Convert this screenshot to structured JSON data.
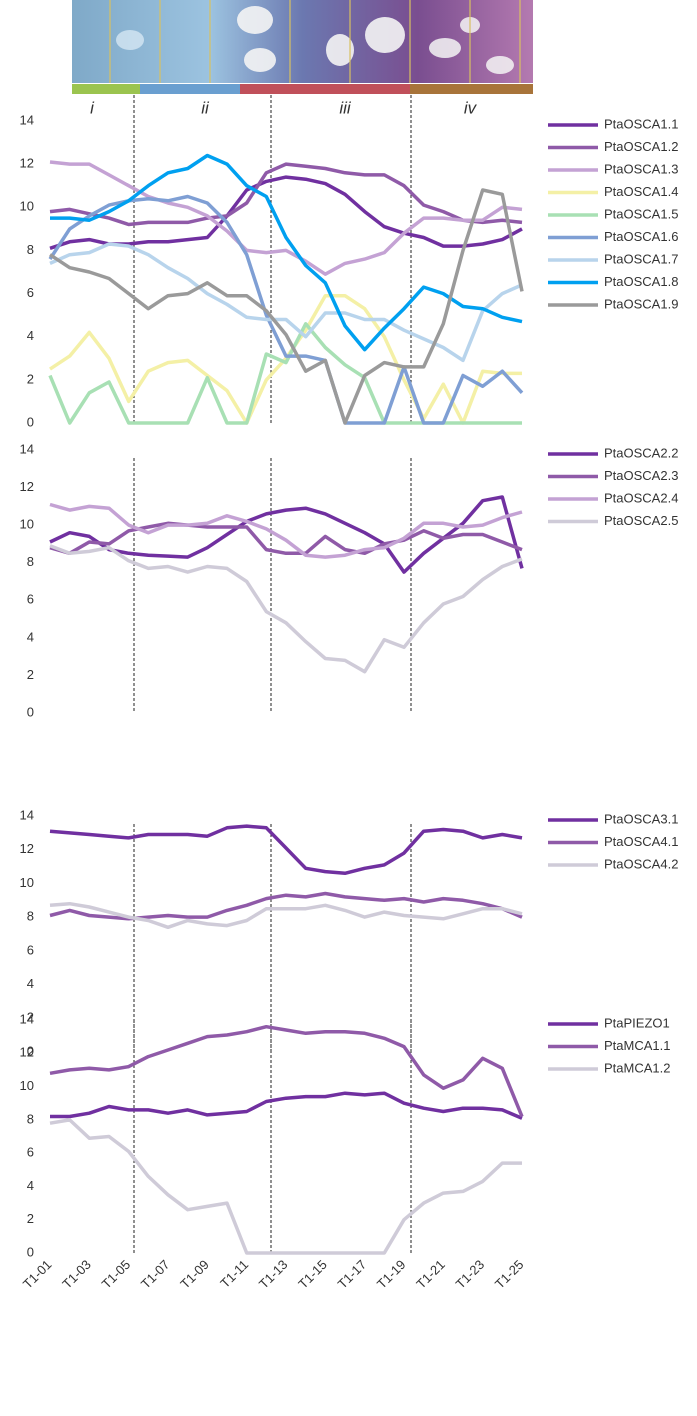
{
  "zones": [
    "i",
    "ii",
    "iii",
    "iv"
  ],
  "chart_data": [
    {
      "type": "line",
      "ylim": [
        0,
        14
      ],
      "yticks": [
        0,
        2,
        4,
        6,
        8,
        10,
        12,
        14
      ],
      "series": [
        {
          "name": "PtaOSCA1.1",
          "color": "#7030a0",
          "values": [
            8.1,
            8.4,
            8.5,
            8.3,
            8.3,
            8.4,
            8.4,
            8.5,
            8.6,
            9.6,
            10.8,
            11.2,
            11.4,
            11.3,
            11.1,
            10.6,
            9.8,
            9.1,
            8.8,
            8.6,
            8.2,
            8.2,
            8.3,
            8.5,
            9.0
          ]
        },
        {
          "name": "PtaOSCA1.2",
          "color": "#8f5aa8",
          "values": [
            9.8,
            9.9,
            9.7,
            9.5,
            9.2,
            9.3,
            9.3,
            9.3,
            9.5,
            9.6,
            10.2,
            11.6,
            12.0,
            11.9,
            11.8,
            11.6,
            11.5,
            11.5,
            11.0,
            10.1,
            9.8,
            9.4,
            9.3,
            9.4,
            9.3
          ]
        },
        {
          "name": "PtaOSCA1.3",
          "color": "#c4a2d4",
          "values": [
            12.1,
            12.0,
            12.0,
            11.5,
            11.0,
            10.5,
            10.2,
            10.0,
            9.6,
            8.9,
            8.0,
            7.9,
            8.0,
            7.5,
            6.9,
            7.4,
            7.6,
            7.9,
            8.8,
            9.5,
            9.5,
            9.4,
            9.4,
            10.0,
            9.9
          ]
        },
        {
          "name": "PtaOSCA1.4",
          "color": "#f4f0a6",
          "values": [
            2.5,
            3.1,
            4.2,
            3.0,
            1.0,
            2.4,
            2.8,
            2.9,
            2.2,
            1.5,
            0,
            2.0,
            3.0,
            4.3,
            5.9,
            5.9,
            5.3,
            4.0,
            2.0,
            0.2,
            1.8,
            0,
            2.4,
            2.3,
            2.3
          ]
        },
        {
          "name": "PtaOSCA1.5",
          "color": "#a8e0b4",
          "values": [
            2.2,
            0,
            1.4,
            1.9,
            0,
            0,
            0,
            0,
            2.1,
            0,
            0,
            3.2,
            2.8,
            4.6,
            3.5,
            2.7,
            2.1,
            0,
            0,
            0,
            0,
            0,
            0,
            0,
            0
          ]
        },
        {
          "name": "PtaOSCA1.6",
          "color": "#7f9fd4",
          "values": [
            7.6,
            9.0,
            9.6,
            10.1,
            10.3,
            10.4,
            10.3,
            10.5,
            10.2,
            9.3,
            7.8,
            5.0,
            3.1,
            3.1,
            2.9,
            0,
            0,
            0,
            2.6,
            0,
            0,
            2.2,
            1.7,
            2.4,
            1.4
          ]
        },
        {
          "name": "PtaOSCA1.7",
          "color": "#b8d4ec",
          "values": [
            7.4,
            7.8,
            7.9,
            8.3,
            8.2,
            7.8,
            7.2,
            6.7,
            6.0,
            5.5,
            4.9,
            4.8,
            4.8,
            4.0,
            5.1,
            5.1,
            4.8,
            4.8,
            4.3,
            3.9,
            3.5,
            2.9,
            5.2,
            6.0,
            6.4
          ]
        },
        {
          "name": "PtaOSCA1.8",
          "color": "#00a0f0",
          "values": [
            9.5,
            9.5,
            9.4,
            9.8,
            10.3,
            11.0,
            11.6,
            11.8,
            12.4,
            12.0,
            11.0,
            10.5,
            8.6,
            7.3,
            6.5,
            4.5,
            3.4,
            4.4,
            5.3,
            6.3,
            6.0,
            5.4,
            5.3,
            4.9,
            4.7
          ]
        },
        {
          "name": "PtaOSCA1.9",
          "color": "#9a9a9a",
          "values": [
            7.8,
            7.2,
            7.0,
            6.7,
            6.0,
            5.3,
            5.9,
            6.0,
            6.5,
            5.9,
            5.9,
            5.2,
            4.1,
            2.4,
            2.9,
            0,
            2.2,
            2.8,
            2.6,
            2.6,
            4.6,
            8.0,
            10.8,
            10.6,
            6.1
          ]
        }
      ]
    },
    {
      "type": "line",
      "ylim": [
        0,
        14
      ],
      "yticks": [
        0,
        2,
        4,
        6,
        8,
        10,
        12,
        14
      ],
      "series": [
        {
          "name": "PtaOSCA2.2",
          "color": "#7030a0",
          "values": [
            9.1,
            9.6,
            9.4,
            8.7,
            8.5,
            8.4,
            8.35,
            8.3,
            8.8,
            9.5,
            10.2,
            10.6,
            10.8,
            10.9,
            10.6,
            10.1,
            9.6,
            9.0,
            7.5,
            8.5,
            9.3,
            10.1,
            11.3,
            11.5,
            7.7
          ]
        },
        {
          "name": "PtaOSCA2.3",
          "color": "#8f5aa8",
          "values": [
            8.8,
            8.5,
            9.1,
            9.0,
            9.7,
            9.9,
            10.1,
            10.0,
            9.9,
            9.9,
            9.9,
            8.7,
            8.5,
            8.5,
            9.4,
            8.7,
            8.5,
            9.0,
            9.2,
            9.7,
            9.3,
            9.5,
            9.5,
            9.1,
            8.7
          ]
        },
        {
          "name": "PtaOSCA2.4",
          "color": "#c4a2d4",
          "values": [
            11.1,
            10.8,
            11.0,
            10.9,
            10.0,
            9.6,
            10.0,
            10.0,
            10.1,
            10.5,
            10.2,
            9.8,
            9.2,
            8.4,
            8.3,
            8.4,
            8.7,
            8.8,
            9.3,
            10.1,
            10.1,
            9.9,
            10.0,
            10.4,
            10.7
          ]
        },
        {
          "name": "PtaOSCA2.5",
          "color": "#cfcbd8",
          "values": [
            8.9,
            8.5,
            8.6,
            8.8,
            8.1,
            7.7,
            7.8,
            7.5,
            7.8,
            7.7,
            7.0,
            5.4,
            4.8,
            3.8,
            2.9,
            2.8,
            2.2,
            3.9,
            3.5,
            4.8,
            5.8,
            6.2,
            7.1,
            7.8,
            8.2
          ]
        }
      ]
    },
    {
      "type": "line",
      "ylim": [
        0,
        14
      ],
      "yticks": [
        0,
        2,
        4,
        6,
        8,
        10,
        12,
        14
      ],
      "series": [
        {
          "name": "PtaOSCA3.1",
          "color": "#7030a0",
          "values": [
            13.1,
            13.0,
            12.9,
            12.8,
            12.7,
            12.9,
            12.9,
            12.9,
            12.8,
            13.3,
            13.4,
            13.3,
            12.1,
            10.9,
            10.7,
            10.6,
            10.9,
            11.1,
            11.8,
            13.1,
            13.2,
            13.1,
            12.7,
            12.9,
            12.7
          ]
        },
        {
          "name": "PtaOSCA4.1",
          "color": "#8f5aa8",
          "values": [
            8.1,
            8.4,
            8.1,
            8.0,
            7.9,
            8.0,
            8.1,
            8.0,
            8.0,
            8.4,
            8.7,
            9.1,
            9.3,
            9.2,
            9.4,
            9.2,
            9.1,
            9.0,
            9.1,
            8.9,
            9.1,
            9.0,
            8.8,
            8.5,
            8.0
          ]
        },
        {
          "name": "PtaOSCA4.2",
          "color": "#cfcbd8",
          "values": [
            8.7,
            8.8,
            8.6,
            8.3,
            8.0,
            7.8,
            7.4,
            7.8,
            7.6,
            7.5,
            7.8,
            8.5,
            8.5,
            8.5,
            8.7,
            8.4,
            8.0,
            8.3,
            8.1,
            8.0,
            7.9,
            8.2,
            8.5,
            8.5,
            8.2
          ]
        }
      ]
    },
    {
      "type": "line",
      "ylim": [
        0,
        14
      ],
      "yticks": [
        0,
        2,
        4,
        6,
        8,
        10,
        12,
        14
      ],
      "categories": [
        "T1-01",
        null,
        "T1-03",
        null,
        "T1-05",
        null,
        "T1-07",
        null,
        "T1-09",
        null,
        "T1-11",
        null,
        "T1-13",
        null,
        "T1-15",
        null,
        "T1-17",
        null,
        "T1-19",
        null,
        "T1-21",
        null,
        "T1-23",
        null,
        "T1-25"
      ],
      "series": [
        {
          "name": "PtaPIEZO1",
          "color": "#7030a0",
          "values": [
            8.2,
            8.2,
            8.4,
            8.8,
            8.6,
            8.6,
            8.4,
            8.6,
            8.3,
            8.4,
            8.5,
            9.1,
            9.3,
            9.4,
            9.4,
            9.6,
            9.5,
            9.6,
            9.0,
            8.7,
            8.5,
            8.7,
            8.7,
            8.6,
            8.1
          ]
        },
        {
          "name": "PtaMCA1.1",
          "color": "#8f5aa8",
          "values": [
            10.8,
            11.0,
            11.1,
            11.0,
            11.2,
            11.8,
            12.2,
            12.6,
            13.0,
            13.1,
            13.3,
            13.6,
            13.4,
            13.2,
            13.3,
            13.3,
            13.2,
            12.9,
            12.4,
            10.7,
            9.9,
            10.4,
            11.7,
            11.1,
            8.2
          ]
        },
        {
          "name": "PtaMCA1.2",
          "color": "#cfcbd8",
          "values": [
            7.8,
            8.0,
            6.9,
            7.0,
            6.1,
            4.6,
            3.5,
            2.6,
            2.8,
            3.0,
            0,
            0,
            0,
            0,
            0,
            0,
            0,
            0,
            2.0,
            3.0,
            3.6,
            3.7,
            4.3,
            5.4,
            5.4
          ]
        }
      ]
    }
  ]
}
